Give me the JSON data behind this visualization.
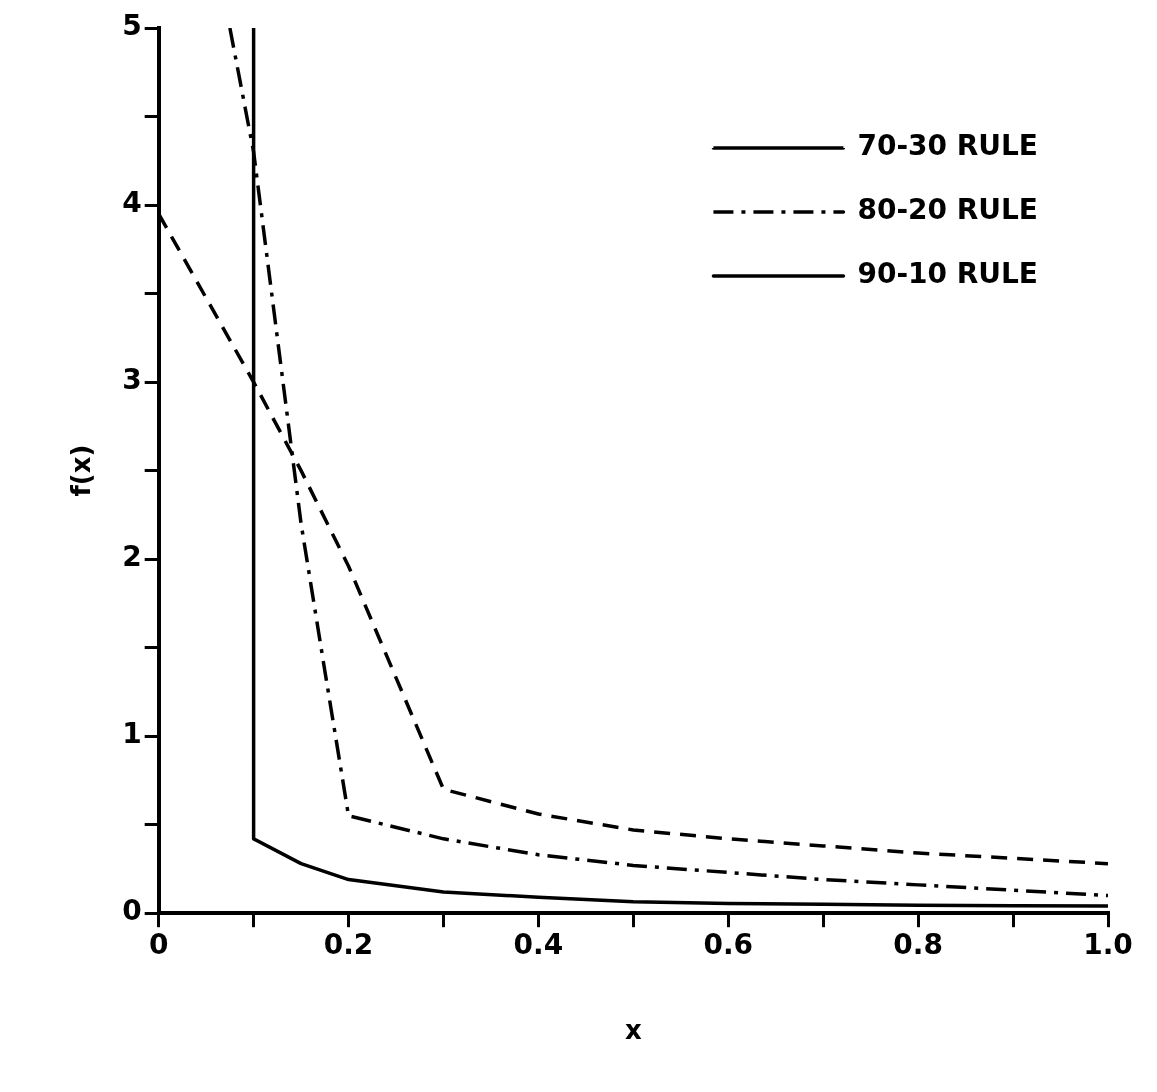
{
  "chart_data": {
    "type": "line",
    "xlabel": "x",
    "ylabel": "f(x)",
    "xlim": [
      0,
      1.0
    ],
    "ylim": [
      0,
      5
    ],
    "xticks": [
      0,
      {
        "value": 0.1,
        "label": null
      },
      0.2,
      {
        "value": 0.3,
        "label": null
      },
      0.4,
      {
        "value": 0.5,
        "label": null
      },
      0.6,
      {
        "value": 0.7,
        "label": null
      },
      0.8,
      {
        "value": 0.9,
        "label": null
      },
      {
        "value": 1.0,
        "label": "1.0"
      }
    ],
    "yticks": [
      0,
      {
        "value": 0.5,
        "label": null
      },
      1,
      {
        "value": 1.5,
        "label": null
      },
      2,
      {
        "value": 2.5,
        "label": null
      },
      3,
      {
        "value": 3.5,
        "label": null
      },
      4,
      {
        "value": 4.5,
        "label": null
      },
      5
    ],
    "grid": false,
    "legend": "top right",
    "marker": "none",
    "series": [
      {
        "name": "70-30 RULE",
        "color": "#000000",
        "line_style": "dashed",
        "x": [
          0,
          0.1,
          0.15,
          0.2,
          0.3,
          0.4,
          0.5,
          0.6,
          0.7,
          0.8,
          0.9,
          1.0
        ],
        "values": [
          3.95,
          3.0,
          2.5,
          1.96,
          0.7,
          0.56,
          0.47,
          0.42,
          0.38,
          0.34,
          0.31,
          0.28
        ]
      },
      {
        "name": "80-20 RULE",
        "color": "#000000",
        "line_style": "dashdot",
        "x": [
          0.075,
          0.1,
          0.15,
          0.175,
          0.2,
          0.3,
          0.4,
          0.5,
          0.6,
          0.7,
          0.8,
          0.9,
          1.0
        ],
        "values": [
          5,
          4.3,
          2.2,
          1.37,
          0.55,
          0.42,
          0.33,
          0.27,
          0.23,
          0.19,
          0.16,
          0.13,
          0.1
        ]
      },
      {
        "name": "90-10 RULE",
        "color": "#000000",
        "line_style": "solid",
        "x": [
          0.1,
          0.1,
          0.15,
          0.2,
          0.3,
          0.4,
          0.5,
          0.6,
          0.7,
          0.8,
          0.9,
          1.0
        ],
        "values": [
          5,
          0.42,
          0.28,
          0.19,
          0.12,
          0.09,
          0.065,
          0.055,
          0.05,
          0.045,
          0.042,
          0.04
        ]
      }
    ]
  }
}
